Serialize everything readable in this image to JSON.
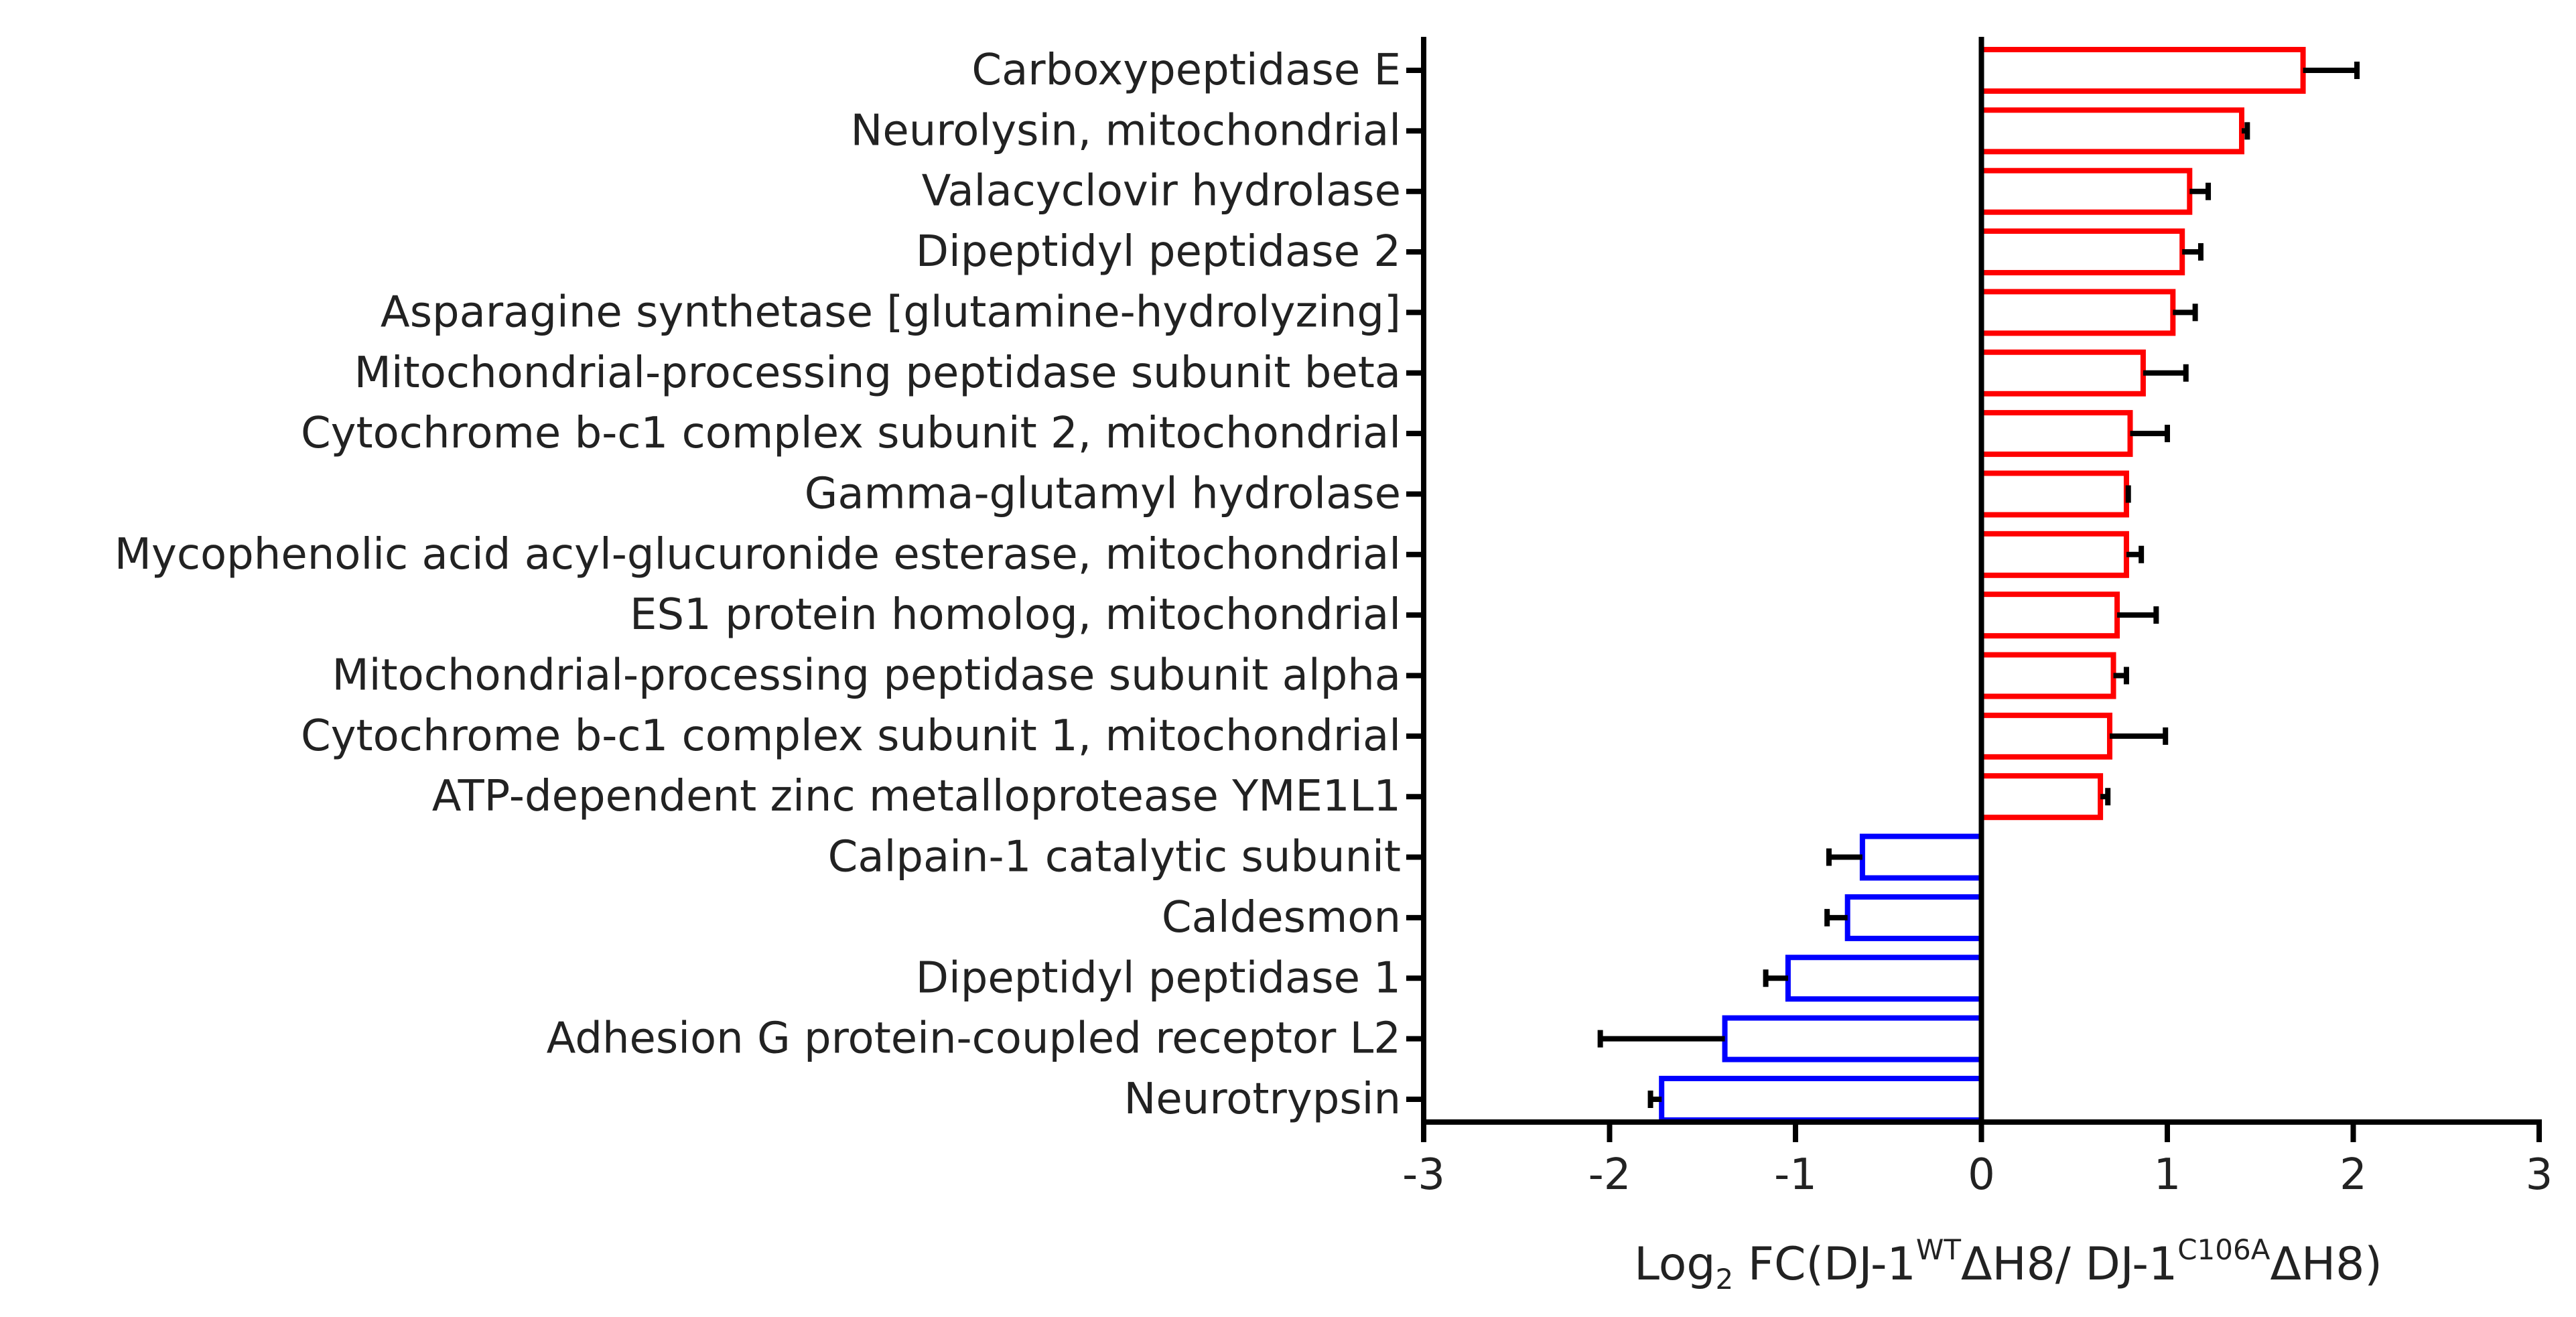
{
  "chart_data": {
    "type": "bar",
    "orientation": "horizontal",
    "title": "",
    "xlabel": {
      "prefix": "Log",
      "subscript": "2",
      "part1": " FC(DJ-1",
      "sup1": "WT",
      "part2": "ΔH8/ DJ-1",
      "sup2": "C106A",
      "part3": "ΔH8)"
    },
    "ylabel": "",
    "xlim": [
      -3,
      3
    ],
    "xticks": [
      "-3",
      "-2",
      "-1",
      "0",
      "1",
      "2",
      "3"
    ],
    "grid": false,
    "legend": "none",
    "colors": {
      "positive": "#ff0000",
      "negative": "#0000ff",
      "axis": "#000000",
      "error": "#000000"
    },
    "categories": [
      "Carboxypeptidase E",
      "Neurolysin, mitochondrial",
      "Valacyclovir hydrolase",
      "Dipeptidyl peptidase 2",
      "Asparagine synthetase [glutamine-hydrolyzing]",
      "Mitochondrial-processing peptidase subunit beta",
      "Cytochrome b-c1 complex subunit 2, mitochondrial",
      "Gamma-glutamyl hydrolase",
      "Mycophenolic acid acyl-glucuronide esterase, mitochondrial",
      "ES1 protein homolog, mitochondrial",
      "Mitochondrial-processing peptidase subunit alpha",
      "Cytochrome b-c1 complex subunit 1, mitochondrial",
      "ATP-dependent zinc metalloprotease YME1L1",
      "Calpain-1 catalytic subunit",
      "Caldesmon",
      "Dipeptidyl peptidase 1",
      "Adhesion G protein-coupled receptor L2",
      "Neurotrypsin"
    ],
    "values": [
      1.73,
      1.4,
      1.12,
      1.08,
      1.03,
      0.87,
      0.8,
      0.78,
      0.78,
      0.73,
      0.71,
      0.69,
      0.64,
      -0.64,
      -0.72,
      -1.04,
      -1.38,
      -1.72
    ],
    "errors": [
      0.29,
      0.03,
      0.1,
      0.1,
      0.12,
      0.23,
      0.2,
      0.01,
      0.08,
      0.21,
      0.07,
      0.3,
      0.04,
      0.18,
      0.11,
      0.12,
      0.67,
      0.06
    ]
  }
}
